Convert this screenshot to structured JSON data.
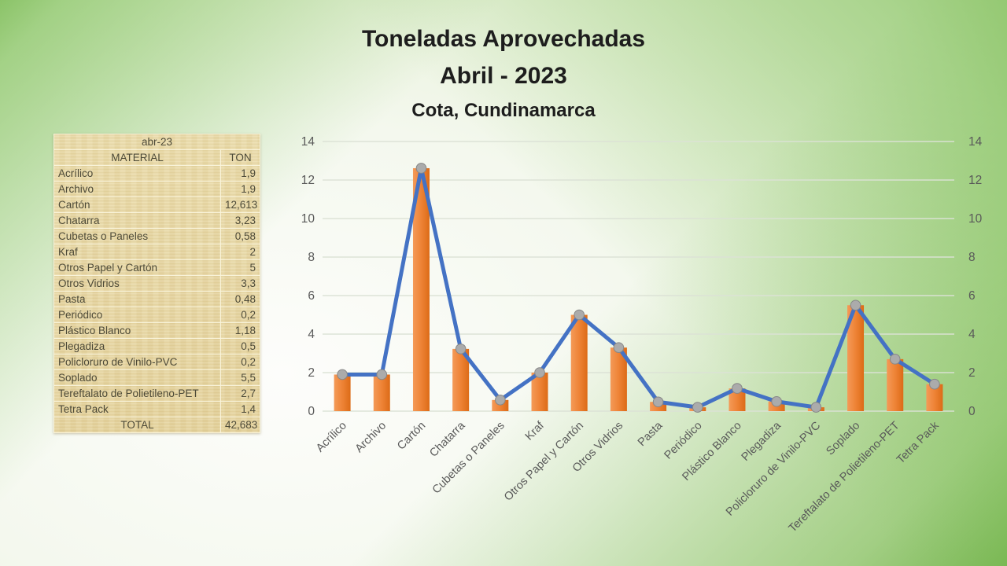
{
  "slide": {
    "title_line1": "Toneladas Aprovechadas",
    "title_line2": "Abril - 2023",
    "subtitle": "Cota, Cundinamarca"
  },
  "table": {
    "period_header": "abr-23",
    "columns": [
      "MATERIAL",
      "TON"
    ],
    "rows": [
      {
        "material": "Acrílico",
        "ton": "1,9"
      },
      {
        "material": "Archivo",
        "ton": "1,9"
      },
      {
        "material": "Cartón",
        "ton": "12,613"
      },
      {
        "material": "Chatarra",
        "ton": "3,23"
      },
      {
        "material": "Cubetas o Paneles",
        "ton": "0,58"
      },
      {
        "material": "Kraf",
        "ton": "2"
      },
      {
        "material": "Otros Papel y Cartón",
        "ton": "5"
      },
      {
        "material": "Otros Vidrios",
        "ton": "3,3"
      },
      {
        "material": "Pasta",
        "ton": "0,48"
      },
      {
        "material": "Periódico",
        "ton": "0,2"
      },
      {
        "material": "Plástico Blanco",
        "ton": "1,18"
      },
      {
        "material": "Plegadiza",
        "ton": "0,5"
      },
      {
        "material": "Policloruro de Vinilo-PVC",
        "ton": "0,2"
      },
      {
        "material": "Soplado",
        "ton": "5,5"
      },
      {
        "material": "Tereftalato de Polietileno-PET",
        "ton": "2,7"
      },
      {
        "material": "Tetra Pack",
        "ton": "1,4"
      }
    ],
    "total_label": "TOTAL",
    "total_value": "42,683"
  },
  "chart_data": {
    "type": "bar",
    "overlay": "line",
    "title": "",
    "xlabel": "",
    "ylabel": "",
    "categories": [
      "Acrílico",
      "Archivo",
      "Cartón",
      "Chatarra",
      "Cubetas o Paneles",
      "Kraf",
      "Otros Papel y Cartón",
      "Otros Vidrios",
      "Pasta",
      "Periódico",
      "Plástico Blanco",
      "Plegadiza",
      "Policloruro de Vinilo-PVC",
      "Soplado",
      "Tereftalato de Polietileno-PET",
      "Tetra Pack"
    ],
    "values": [
      1.9,
      1.9,
      12.613,
      3.23,
      0.58,
      2,
      5,
      3.3,
      0.48,
      0.2,
      1.18,
      0.5,
      0.2,
      5.5,
      2.7,
      1.4
    ],
    "series_name": "TON",
    "ylim": [
      0,
      14
    ],
    "yticks": [
      0,
      2,
      4,
      6,
      8,
      10,
      12,
      14
    ],
    "grid": true,
    "legend_position": "none",
    "dual_axis": true,
    "x_label_rotation": -45
  },
  "colors": {
    "bar_light": "#F49A58",
    "bar_mid": "#EE8336",
    "bar_dark": "#DC6B17",
    "line_blue": "#4472C4",
    "marker_fill": "#ABABAB",
    "marker_edge": "#878787",
    "axis_text": "#595959",
    "gridline": "#DCE2D6",
    "title_text": "#1D1D1D",
    "table_bg": "#E9D8A6",
    "background_green": "#7CBF55"
  }
}
